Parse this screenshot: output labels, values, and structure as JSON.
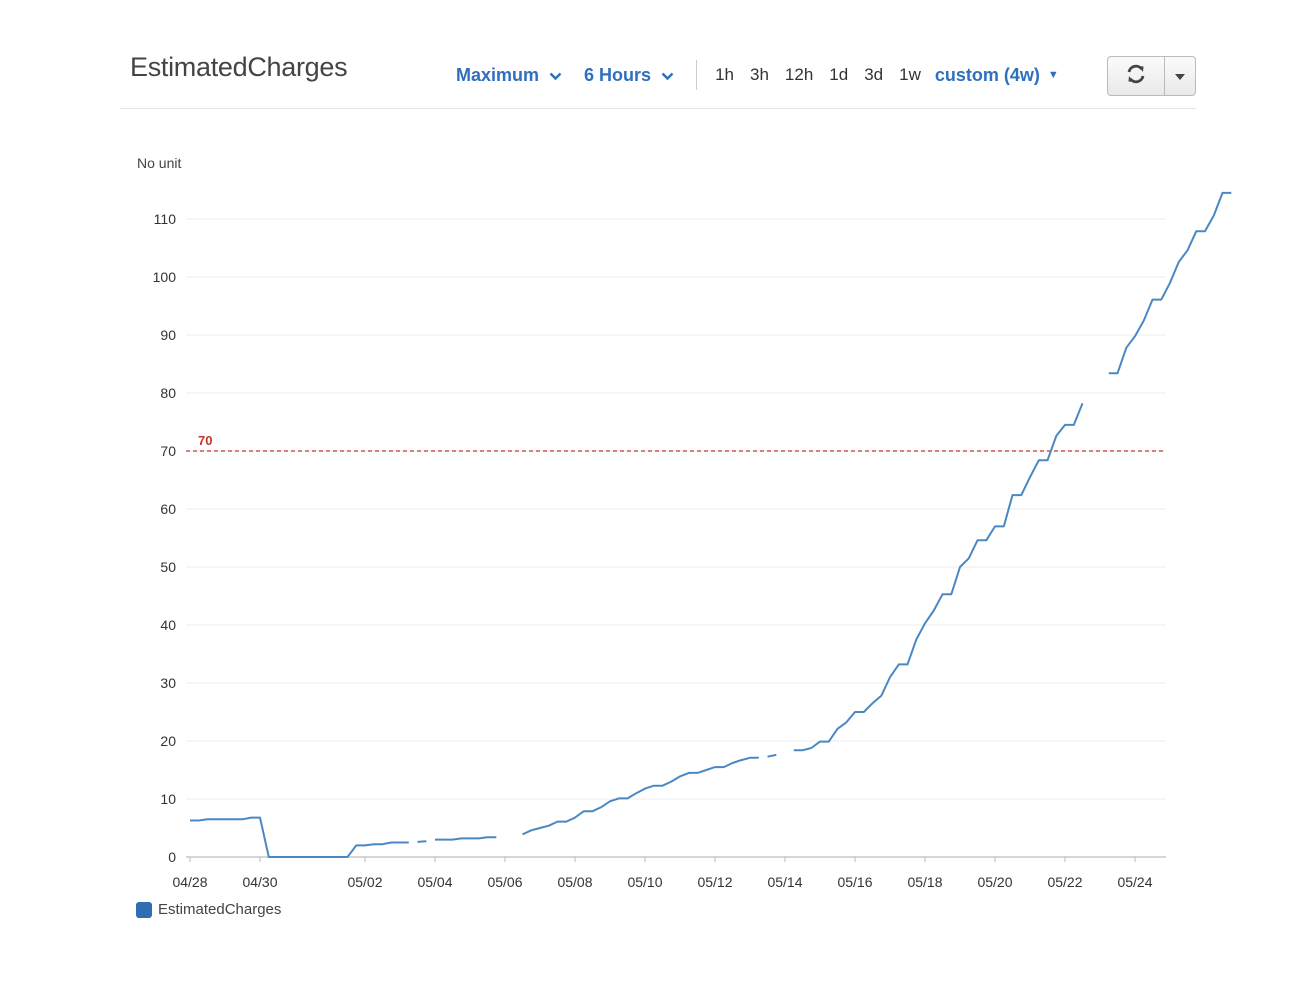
{
  "header": {
    "title": "EstimatedCharges",
    "statistic": "Maximum",
    "period": "6 Hours",
    "ranges": [
      "1h",
      "3h",
      "12h",
      "1d",
      "3d",
      "1w"
    ],
    "custom_range": "custom (4w)"
  },
  "colors": {
    "accent": "#2f6fbd",
    "series": "#4a88c2",
    "threshold": "#c0392b"
  },
  "icons": {
    "refresh": "refresh-icon",
    "more": "caret-down-icon"
  },
  "chart_data": {
    "type": "line",
    "ylabel": "No unit",
    "ylim": [
      0,
      115
    ],
    "y_ticks": [
      0,
      10,
      20,
      30,
      40,
      50,
      60,
      70,
      80,
      90,
      100,
      110
    ],
    "x_tick_labels": [
      "04/28",
      "04/30",
      "05/02",
      "05/04",
      "05/06",
      "05/08",
      "05/10",
      "05/12",
      "05/14",
      "05/16",
      "05/18",
      "05/20",
      "05/22",
      "05/24"
    ],
    "threshold": {
      "value": 70,
      "label": "70"
    },
    "series": [
      {
        "name": "EstimatedCharges",
        "segments": [
          [
            [
              "04/28 00:00",
              6.3
            ],
            [
              "04/28 06:00",
              6.3
            ],
            [
              "04/28 12:00",
              6.5
            ],
            [
              "04/29 12:00",
              6.5
            ],
            [
              "04/29 18:00",
              6.8
            ],
            [
              "04/30 00:00",
              6.8
            ],
            [
              "04/30 06:00",
              0
            ],
            [
              "05/01 12:00",
              0
            ],
            [
              "05/01 18:00",
              2.0
            ],
            [
              "05/02 00:00",
              2.0
            ],
            [
              "05/02 06:00",
              2.2
            ],
            [
              "05/02 12:00",
              2.2
            ],
            [
              "05/02 18:00",
              2.5
            ],
            [
              "05/03 06:00",
              2.5
            ]
          ],
          [
            [
              "05/03 12:00",
              2.6
            ],
            [
              "05/03 18:00",
              2.7
            ]
          ],
          [
            [
              "05/04 00:00",
              3.0
            ],
            [
              "05/04 12:00",
              3.0
            ],
            [
              "05/04 18:00",
              3.2
            ],
            [
              "05/05 06:00",
              3.2
            ],
            [
              "05/05 12:00",
              3.4
            ],
            [
              "05/05 18:00",
              3.4
            ]
          ],
          [
            [
              "05/06 12:00",
              3.9
            ],
            [
              "05/06 18:00",
              4.6
            ],
            [
              "05/07 00:00",
              5.0
            ],
            [
              "05/07 06:00",
              5.4
            ],
            [
              "05/07 12:00",
              6.1
            ],
            [
              "05/07 18:00",
              6.1
            ],
            [
              "05/08 00:00",
              6.8
            ],
            [
              "05/08 06:00",
              7.9
            ],
            [
              "05/08 12:00",
              7.9
            ],
            [
              "05/08 18:00",
              8.6
            ],
            [
              "05/09 00:00",
              9.6
            ],
            [
              "05/09 06:00",
              10.1
            ],
            [
              "05/09 12:00",
              10.1
            ],
            [
              "05/09 18:00",
              11.0
            ],
            [
              "05/10 00:00",
              11.8
            ],
            [
              "05/10 06:00",
              12.3
            ],
            [
              "05/10 12:00",
              12.3
            ],
            [
              "05/10 18:00",
              13.0
            ],
            [
              "05/11 00:00",
              13.9
            ],
            [
              "05/11 06:00",
              14.5
            ],
            [
              "05/11 12:00",
              14.5
            ],
            [
              "05/11 18:00",
              15.0
            ],
            [
              "05/12 00:00",
              15.5
            ],
            [
              "05/12 06:00",
              15.5
            ],
            [
              "05/12 12:00",
              16.2
            ],
            [
              "05/12 18:00",
              16.7
            ],
            [
              "05/13 00:00",
              17.1
            ],
            [
              "05/13 06:00",
              17.1
            ]
          ],
          [
            [
              "05/13 12:00",
              17.3
            ],
            [
              "05/13 18:00",
              17.6
            ]
          ],
          [
            [
              "05/14 06:00",
              18.4
            ],
            [
              "05/14 12:00",
              18.4
            ],
            [
              "05/14 18:00",
              18.8
            ],
            [
              "05/15 00:00",
              19.9
            ],
            [
              "05/15 06:00",
              19.9
            ],
            [
              "05/15 12:00",
              22.1
            ],
            [
              "05/15 18:00",
              23.2
            ],
            [
              "05/16 00:00",
              25.0
            ],
            [
              "05/16 06:00",
              25.0
            ],
            [
              "05/16 12:00",
              26.5
            ],
            [
              "05/16 18:00",
              27.8
            ],
            [
              "05/17 00:00",
              31.0
            ],
            [
              "05/17 06:00",
              33.2
            ],
            [
              "05/17 12:00",
              33.2
            ],
            [
              "05/17 18:00",
              37.5
            ],
            [
              "05/18 00:00",
              40.3
            ],
            [
              "05/18 06:00",
              42.5
            ],
            [
              "05/18 12:00",
              45.3
            ],
            [
              "05/18 18:00",
              45.3
            ],
            [
              "05/19 00:00",
              50.0
            ],
            [
              "05/19 06:00",
              51.5
            ],
            [
              "05/19 12:00",
              54.6
            ],
            [
              "05/19 18:00",
              54.6
            ],
            [
              "05/20 00:00",
              57.0
            ],
            [
              "05/20 06:00",
              57.0
            ],
            [
              "05/20 12:00",
              62.4
            ],
            [
              "05/20 18:00",
              62.4
            ],
            [
              "05/21 00:00",
              65.5
            ],
            [
              "05/21 06:00",
              68.4
            ],
            [
              "05/21 12:00",
              68.4
            ],
            [
              "05/21 18:00",
              72.6
            ],
            [
              "05/22 00:00",
              74.5
            ],
            [
              "05/22 06:00",
              74.5
            ],
            [
              "05/22 12:00",
              78.2
            ]
          ],
          [
            [
              "05/23 06:00",
              83.4
            ],
            [
              "05/23 12:00",
              83.4
            ],
            [
              "05/23 18:00",
              87.8
            ],
            [
              "05/24 00:00",
              89.8
            ],
            [
              "05/24 06:00",
              92.5
            ],
            [
              "05/24 12:00",
              96.1
            ],
            [
              "05/24 18:00",
              96.1
            ],
            [
              "05/25 00:00",
              99.0
            ],
            [
              "05/25 06:00",
              102.6
            ],
            [
              "05/25 12:00",
              104.6
            ],
            [
              "05/25 18:00",
              107.9
            ],
            [
              "05/26 00:00",
              107.9
            ],
            [
              "05/26 06:00",
              110.6
            ],
            [
              "05/26 12:00",
              114.5
            ],
            [
              "05/26 18:00",
              114.5
            ]
          ]
        ]
      }
    ]
  }
}
